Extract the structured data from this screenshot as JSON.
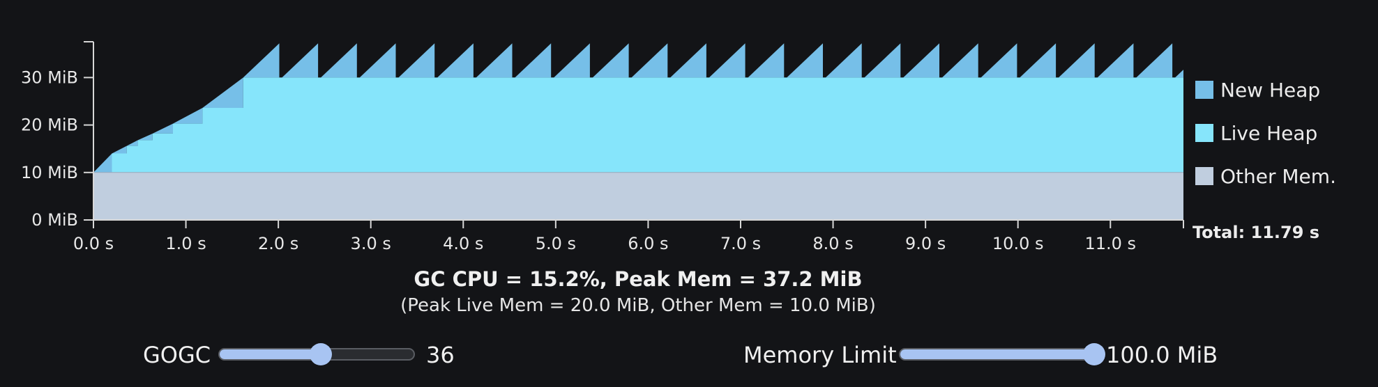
{
  "chart_data": {
    "type": "area",
    "x_range": [
      0,
      11.79
    ],
    "y_range": [
      0,
      40
    ],
    "x_tick_labels": [
      "0.0 s",
      "1.0 s",
      "2.0 s",
      "3.0 s",
      "4.0 s",
      "5.0 s",
      "6.0 s",
      "7.0 s",
      "8.0 s",
      "9.0 s",
      "10.0 s",
      "11.0 s"
    ],
    "x_tick_values": [
      0,
      1,
      2,
      3,
      4,
      5,
      6,
      7,
      8,
      9,
      10,
      11
    ],
    "y_tick_labels": [
      "0 MiB",
      "10 MiB",
      "20 MiB",
      "30 MiB"
    ],
    "y_tick_values": [
      0,
      10,
      20,
      30
    ],
    "other_mem": 10.0,
    "live_heap_steps": [
      [
        0.0,
        0.0
      ],
      [
        0.2,
        4.0
      ],
      [
        0.36,
        5.6
      ],
      [
        0.48,
        6.8
      ],
      [
        0.64,
        8.2
      ],
      [
        0.86,
        10.3
      ],
      [
        1.18,
        13.6
      ],
      [
        1.62,
        20.0
      ],
      [
        11.79,
        20.0
      ]
    ],
    "gc_cycle_start": 1.62,
    "gc_cycle_period": 0.42,
    "gc_cycle_rise": 0.39,
    "new_heap_peak": 7.2,
    "total_label": "Total: 11.79 s",
    "legend": [
      {
        "label": "New Heap",
        "color": "#76bfe8"
      },
      {
        "label": "Live Heap",
        "color": "#86e5fb"
      },
      {
        "label": "Other Mem.",
        "color": "#c0cedf"
      }
    ]
  },
  "summary": {
    "title": "GC CPU = 15.2%, Peak Mem = 37.2 MiB",
    "subtitle": "(Peak Live Mem = 20.0 MiB, Other Mem = 10.0 MiB)"
  },
  "controls": {
    "gogc": {
      "label": "GOGC",
      "value": "36",
      "fraction": 0.52
    },
    "memory_limit": {
      "label": "Memory Limit",
      "value": "100.0 MiB",
      "fraction": 1.0
    }
  }
}
